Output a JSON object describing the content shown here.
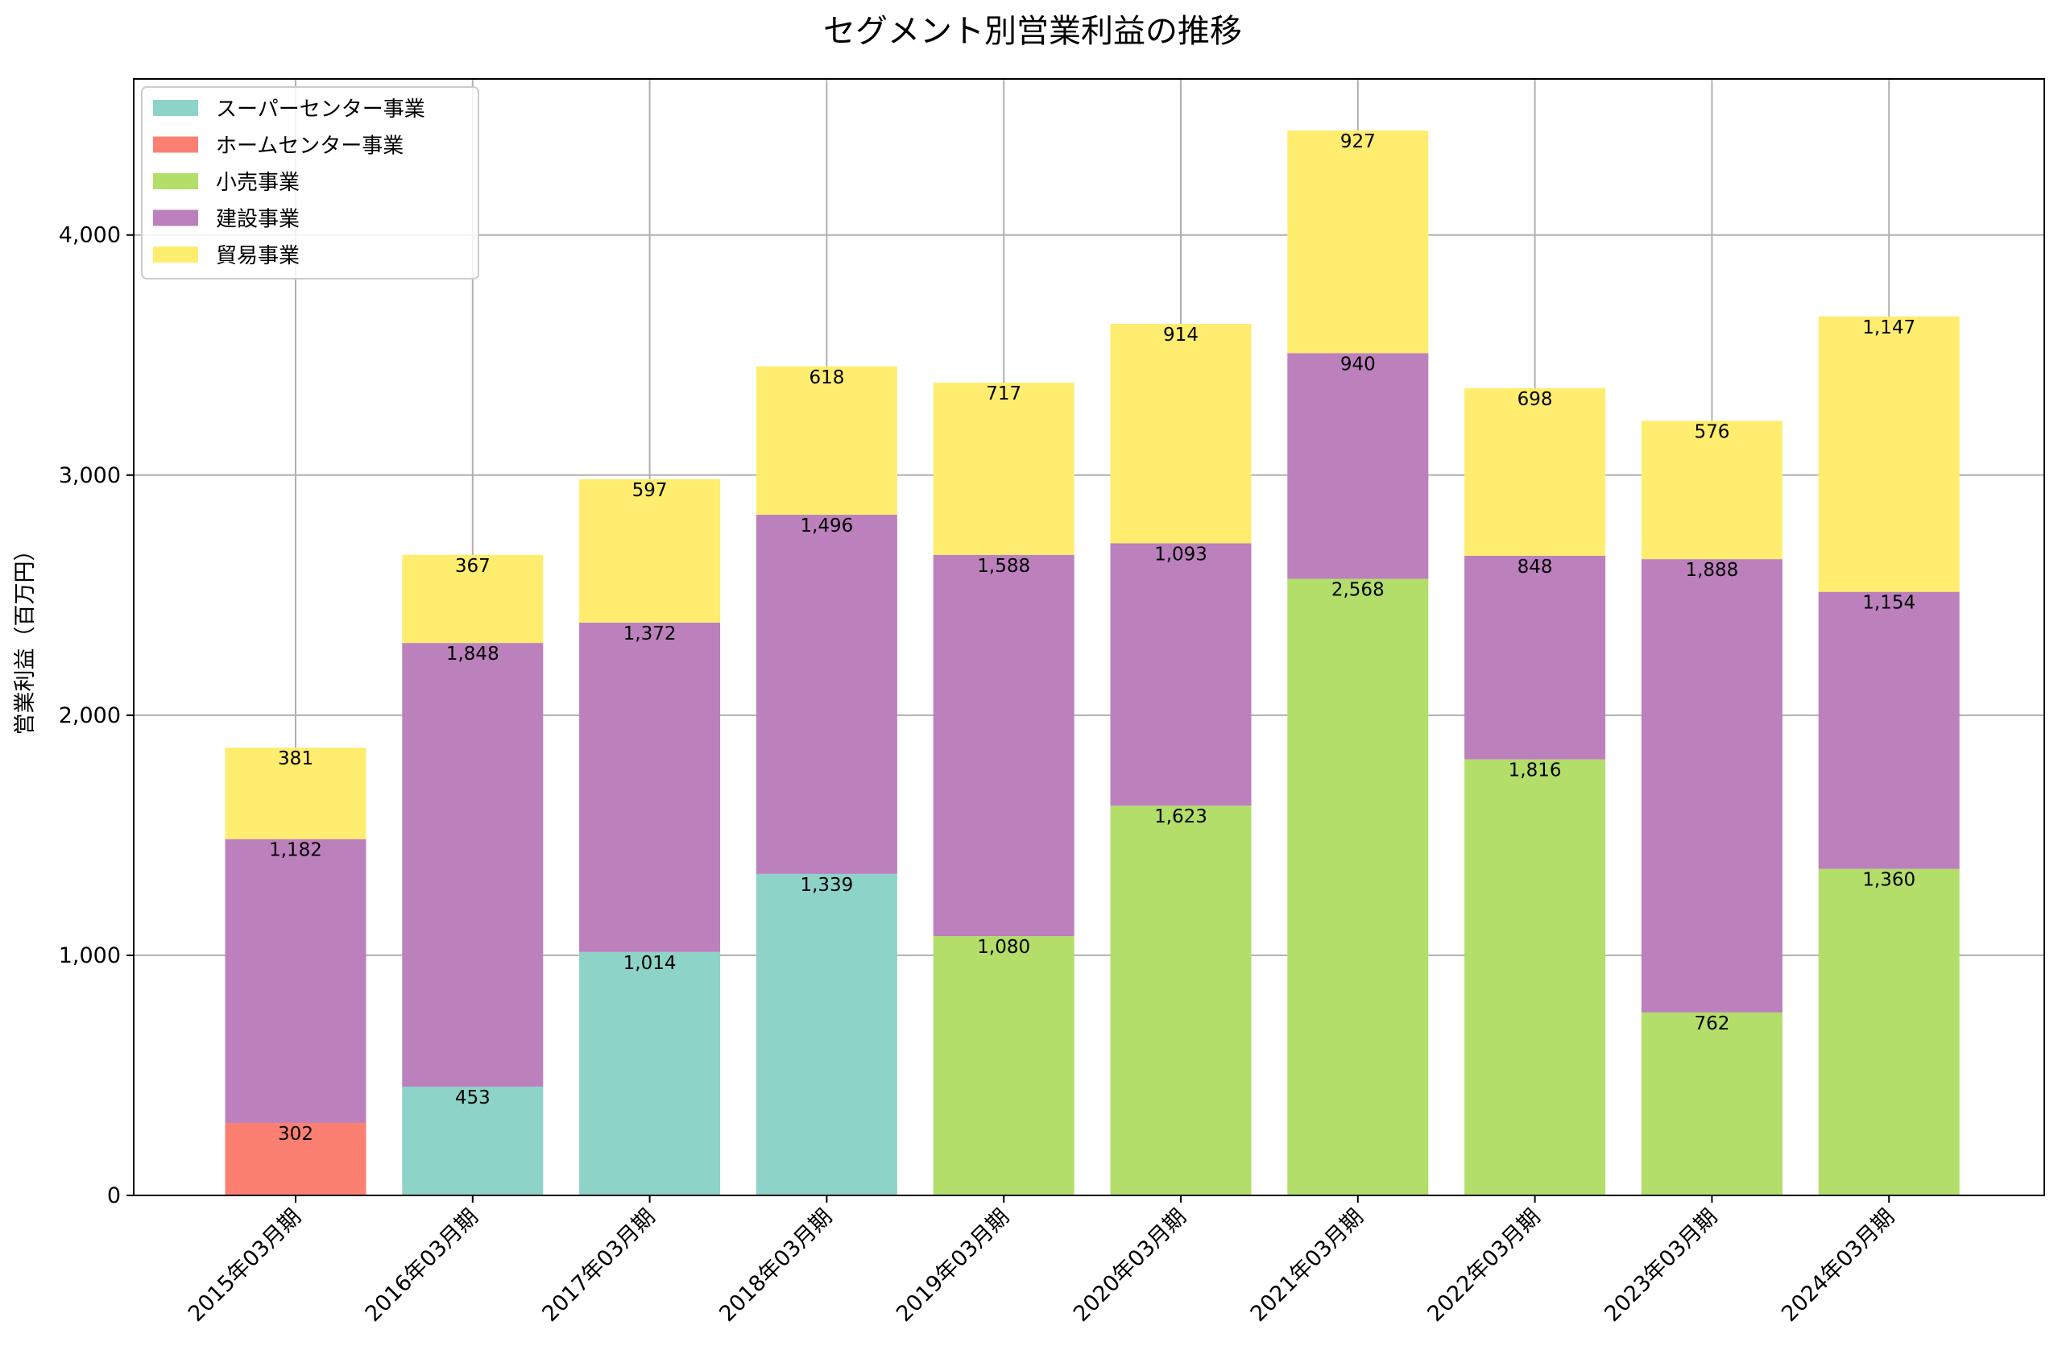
{
  "chart_data": {
    "type": "bar",
    "stacked": true,
    "title": "セグメント別営業利益の推移",
    "xlabel": "",
    "ylabel": "営業利益（百万円）",
    "ylim": [
      0,
      4650
    ],
    "yticks": [
      0,
      1000,
      2000,
      3000,
      4000
    ],
    "ytick_labels": [
      "0",
      "1,000",
      "2,000",
      "3,000",
      "4,000"
    ],
    "grid": true,
    "legend_position": "top-left",
    "categories": [
      "2015年03月期",
      "2016年03月期",
      "2017年03月期",
      "2018年03月期",
      "2019年03月期",
      "2020年03月期",
      "2021年03月期",
      "2022年03月期",
      "2023年03月期",
      "2024年03月期"
    ],
    "series": [
      {
        "name": "スーパーセンター事業",
        "color": "#8dd3c7",
        "values": [
          null,
          453,
          1014,
          1339,
          null,
          null,
          null,
          null,
          null,
          null
        ]
      },
      {
        "name": "ホームセンター事業",
        "color": "#fb8072",
        "values": [
          302,
          null,
          null,
          null,
          null,
          null,
          null,
          null,
          null,
          null
        ]
      },
      {
        "name": "小売事業",
        "color": "#b3de69",
        "values": [
          null,
          null,
          null,
          null,
          1080,
          1623,
          2568,
          1816,
          762,
          1360
        ]
      },
      {
        "name": "建設事業",
        "color": "#bc80bd",
        "values": [
          1182,
          1848,
          1372,
          1496,
          1588,
          1093,
          940,
          848,
          1888,
          1154
        ]
      },
      {
        "name": "貿易事業",
        "color": "#ffed6f",
        "values": [
          381,
          367,
          597,
          618,
          717,
          914,
          927,
          698,
          576,
          1147
        ]
      }
    ],
    "data_labels": [
      [
        "",
        "302",
        "",
        "1,182",
        "381"
      ],
      [
        "453",
        "",
        "",
        "1,848",
        "367"
      ],
      [
        "1,014",
        "",
        "",
        "1,372",
        "597"
      ],
      [
        "1,339",
        "",
        "",
        "1,496",
        "618"
      ],
      [
        "",
        "",
        "1,080",
        "1,588",
        "717"
      ],
      [
        "",
        "",
        "1,623",
        "1,093",
        "914"
      ],
      [
        "",
        "",
        "2,568",
        "940",
        "927"
      ],
      [
        "",
        "",
        "1,816",
        "848",
        "698"
      ],
      [
        "",
        "",
        "762",
        "1,888",
        "576"
      ],
      [
        "",
        "",
        "1,360",
        "1,154",
        "1,147"
      ]
    ]
  }
}
